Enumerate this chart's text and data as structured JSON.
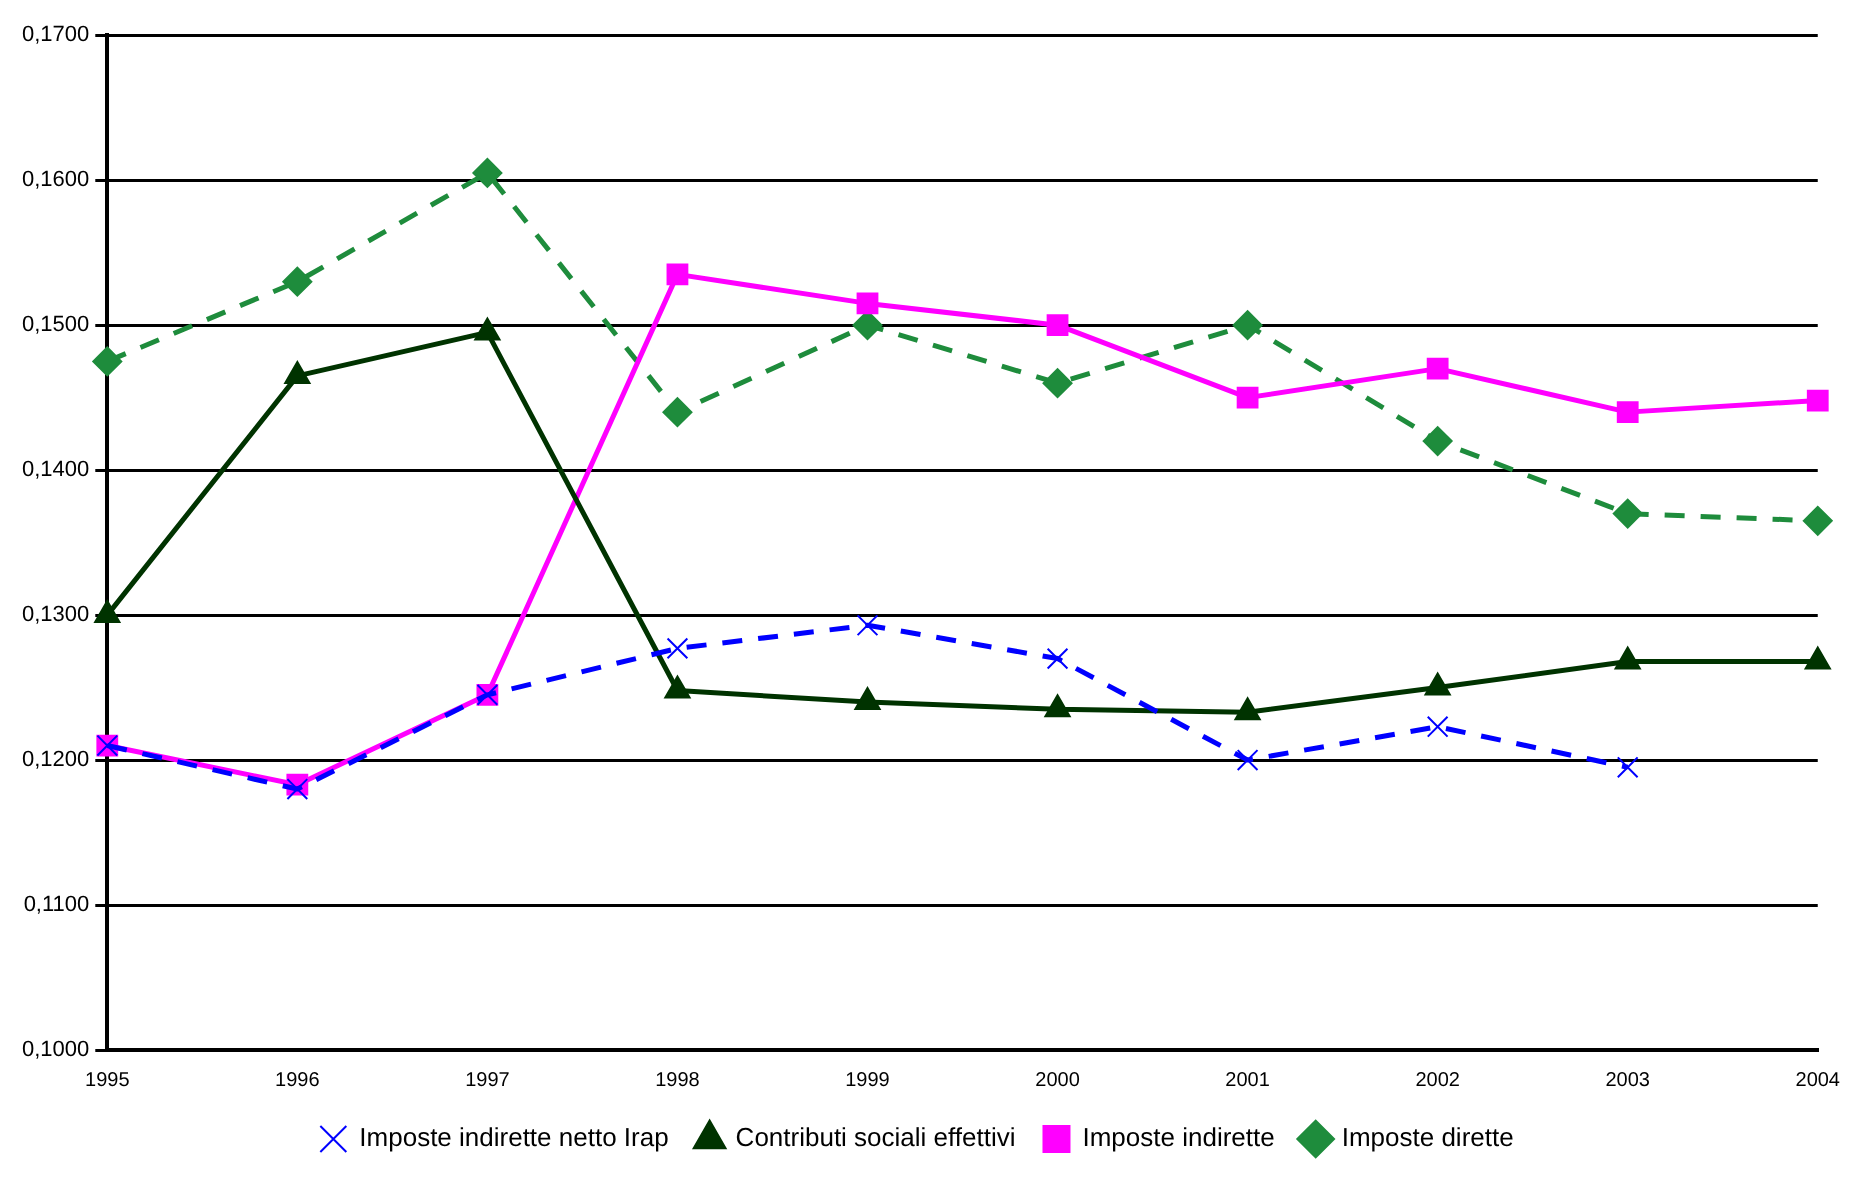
{
  "chart_data": {
    "type": "line",
    "categories": [
      "1995",
      "1996",
      "1997",
      "1998",
      "1999",
      "2000",
      "2001",
      "2002",
      "2003",
      "2004"
    ],
    "series": [
      {
        "name": "Imposte dirette",
        "color": "#1e8c3c",
        "marker": "diamond",
        "line_style": "dashed",
        "values": [
          0.1475,
          0.153,
          0.1605,
          0.144,
          0.15,
          0.146,
          0.15,
          0.142,
          0.137,
          0.1365
        ]
      },
      {
        "name": "Imposte indirette",
        "color": "#ff00ff",
        "marker": "square",
        "line_style": "solid",
        "values": [
          0.121,
          0.1183,
          0.1245,
          0.1535,
          0.1515,
          0.15,
          0.145,
          0.147,
          0.144,
          0.1448
        ]
      },
      {
        "name": "Contributi sociali effettivi",
        "color": "#003300",
        "marker": "triangle",
        "line_style": "solid",
        "values": [
          0.13,
          0.1465,
          0.1495,
          0.1248,
          0.124,
          0.1235,
          0.1233,
          0.125,
          0.1268,
          0.1268
        ]
      },
      {
        "name": "Imposte indirette netto Irap",
        "color": "#0000ff",
        "marker": "cross",
        "line_style": "dashed",
        "values": [
          0.121,
          0.118,
          0.1245,
          0.1277,
          0.1293,
          0.127,
          0.12,
          0.1223,
          0.1195,
          null
        ]
      }
    ],
    "ylim": [
      0.1,
      0.17
    ],
    "yticks": [
      {
        "value": 0.1,
        "label": "0,1000"
      },
      {
        "value": 0.11,
        "label": "0,1100"
      },
      {
        "value": 0.12,
        "label": "0,1200"
      },
      {
        "value": 0.13,
        "label": "0,1300"
      },
      {
        "value": 0.14,
        "label": "0,1400"
      },
      {
        "value": 0.15,
        "label": "0,1500"
      },
      {
        "value": 0.16,
        "label": "0,1600"
      },
      {
        "value": 0.17,
        "label": "0,1700"
      }
    ],
    "grid": "y",
    "legend": "bottom"
  }
}
